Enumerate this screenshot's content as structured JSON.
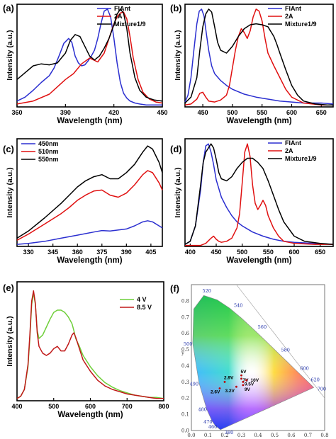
{
  "colors": {
    "blue": "#2b2fd0",
    "red": "#e01010",
    "black": "#000000",
    "green": "#6fcf3a",
    "darkred": "#c01818"
  },
  "chart_data": [
    {
      "panel": "(a)",
      "type": "line",
      "xlabel": "Wavelength (nm)",
      "ylabel": "Intensity (a.u.)",
      "xlim": [
        360,
        450
      ],
      "xticks": [
        360,
        390,
        420,
        450
      ],
      "xticklabels": [
        "360",
        "390",
        "420",
        "450"
      ],
      "ylim": [
        0,
        1.05
      ],
      "legend_position": "top-right",
      "series": [
        {
          "name": "FlAnt",
          "color": "blue",
          "x": [
            360,
            365,
            370,
            375,
            380,
            383,
            386,
            389,
            392,
            394,
            396,
            398,
            400,
            402,
            404,
            406,
            408,
            410,
            412,
            414,
            416,
            418,
            420,
            422,
            424,
            426,
            428,
            430,
            433,
            436,
            440,
            445,
            450
          ],
          "y": [
            0.06,
            0.1,
            0.17,
            0.25,
            0.32,
            0.4,
            0.52,
            0.65,
            0.7,
            0.66,
            0.52,
            0.45,
            0.42,
            0.43,
            0.47,
            0.52,
            0.58,
            0.7,
            0.85,
            0.98,
            1.0,
            0.92,
            0.7,
            0.45,
            0.25,
            0.14,
            0.09,
            0.06,
            0.04,
            0.03,
            0.02,
            0.02,
            0.02
          ]
        },
        {
          "name": "2A",
          "color": "red",
          "x": [
            360,
            370,
            380,
            390,
            395,
            400,
            405,
            410,
            414,
            418,
            420,
            422,
            424,
            426,
            428,
            430,
            432,
            435,
            438,
            442,
            446,
            450
          ],
          "y": [
            0.03,
            0.06,
            0.13,
            0.28,
            0.34,
            0.44,
            0.5,
            0.46,
            0.55,
            0.75,
            0.85,
            0.92,
            0.96,
            0.97,
            0.9,
            0.72,
            0.5,
            0.28,
            0.15,
            0.08,
            0.05,
            0.04
          ]
        },
        {
          "name": "Mixture1/9",
          "color": "black",
          "x": [
            360,
            365,
            370,
            375,
            380,
            385,
            390,
            393,
            396,
            399,
            402,
            405,
            408,
            411,
            414,
            417,
            420,
            422,
            424,
            426,
            428,
            430,
            433,
            436,
            440,
            445,
            450
          ],
          "y": [
            0.28,
            0.35,
            0.42,
            0.44,
            0.43,
            0.45,
            0.55,
            0.68,
            0.74,
            0.72,
            0.62,
            0.52,
            0.48,
            0.52,
            0.6,
            0.7,
            0.84,
            0.95,
            1.0,
            0.96,
            0.8,
            0.55,
            0.3,
            0.17,
            0.1,
            0.07,
            0.06
          ]
        }
      ]
    },
    {
      "panel": "(b)",
      "type": "line",
      "xlabel": "Wavelength (nm)",
      "ylabel": "Intensity (a.u.)",
      "xlim": [
        420,
        670
      ],
      "xticks": [
        450,
        500,
        550,
        600,
        650
      ],
      "xticklabels": [
        "450",
        "500",
        "550",
        "600",
        "650"
      ],
      "ylim": [
        0,
        1.05
      ],
      "legend_position": "top-right",
      "series": [
        {
          "name": "FlAnt",
          "color": "blue",
          "x": [
            420,
            425,
            430,
            435,
            440,
            444,
            448,
            452,
            456,
            460,
            465,
            470,
            480,
            490,
            500,
            520,
            540,
            560,
            580,
            600,
            620,
            650,
            670
          ],
          "y": [
            0.05,
            0.12,
            0.3,
            0.58,
            0.85,
            0.98,
            1.0,
            0.93,
            0.75,
            0.58,
            0.42,
            0.34,
            0.27,
            0.22,
            0.18,
            0.13,
            0.1,
            0.08,
            0.06,
            0.05,
            0.04,
            0.04,
            0.03
          ]
        },
        {
          "name": "2A",
          "color": "red",
          "x": [
            420,
            430,
            440,
            445,
            450,
            455,
            460,
            470,
            480,
            490,
            495,
            500,
            505,
            510,
            515,
            520,
            525,
            530,
            535,
            540,
            545,
            550,
            555,
            560,
            570,
            580,
            590,
            600,
            620,
            650,
            670
          ],
          "y": [
            0.02,
            0.03,
            0.08,
            0.14,
            0.15,
            0.1,
            0.06,
            0.05,
            0.07,
            0.12,
            0.22,
            0.4,
            0.58,
            0.72,
            0.8,
            0.76,
            0.7,
            0.78,
            0.92,
            1.0,
            0.98,
            0.88,
            0.7,
            0.55,
            0.42,
            0.3,
            0.18,
            0.1,
            0.04,
            0.02,
            0.02
          ]
        },
        {
          "name": "Mixture1/9",
          "color": "black",
          "x": [
            420,
            430,
            440,
            445,
            450,
            455,
            460,
            465,
            470,
            475,
            480,
            490,
            500,
            510,
            520,
            530,
            540,
            550,
            560,
            570,
            575,
            580,
            590,
            600,
            610,
            620,
            640,
            660,
            670
          ],
          "y": [
            0.04,
            0.1,
            0.3,
            0.58,
            0.82,
            0.95,
            1.0,
            0.97,
            0.82,
            0.66,
            0.58,
            0.55,
            0.62,
            0.72,
            0.8,
            0.84,
            0.85,
            0.84,
            0.82,
            0.72,
            0.64,
            0.55,
            0.38,
            0.22,
            0.12,
            0.06,
            0.03,
            0.02,
            0.02
          ]
        }
      ]
    },
    {
      "panel": "(c)",
      "type": "line",
      "xlabel": "Wavelength (nm)",
      "ylabel": "Intensity (a.u.)",
      "xlim": [
        323,
        412
      ],
      "xticks": [
        330,
        345,
        360,
        375,
        390,
        405
      ],
      "xticklabels": [
        "330",
        "345",
        "360",
        "375",
        "390",
        "405"
      ],
      "ylim": [
        0,
        1.05
      ],
      "legend_position": "top-left",
      "series": [
        {
          "name": "450nm",
          "color": "blue",
          "x": [
            323,
            330,
            340,
            350,
            360,
            370,
            375,
            380,
            390,
            395,
            400,
            403,
            406,
            410,
            412
          ],
          "y": [
            0.02,
            0.03,
            0.05,
            0.08,
            0.11,
            0.14,
            0.155,
            0.15,
            0.17,
            0.2,
            0.24,
            0.25,
            0.24,
            0.2,
            0.18
          ]
        },
        {
          "name": "510nm",
          "color": "red",
          "x": [
            323,
            330,
            340,
            350,
            355,
            360,
            365,
            370,
            375,
            380,
            385,
            390,
            395,
            400,
            403,
            406,
            410,
            412
          ],
          "y": [
            0.06,
            0.12,
            0.22,
            0.32,
            0.38,
            0.45,
            0.5,
            0.54,
            0.55,
            0.5,
            0.48,
            0.52,
            0.6,
            0.7,
            0.74,
            0.72,
            0.62,
            0.55
          ]
        },
        {
          "name": "550nm",
          "color": "black",
          "x": [
            323,
            330,
            340,
            350,
            355,
            360,
            365,
            370,
            375,
            380,
            385,
            390,
            395,
            400,
            403,
            406,
            410,
            412
          ],
          "y": [
            0.08,
            0.15,
            0.28,
            0.42,
            0.5,
            0.58,
            0.64,
            0.68,
            0.7,
            0.66,
            0.66,
            0.72,
            0.8,
            0.92,
            0.98,
            0.95,
            0.82,
            0.72
          ]
        }
      ]
    },
    {
      "panel": "(d)",
      "type": "line",
      "xlabel": "Wavelength (nm)",
      "ylabel": "Intensity (a.u.)",
      "xlim": [
        390,
        675
      ],
      "xticks": [
        400,
        450,
        500,
        550,
        600,
        650
      ],
      "xticklabels": [
        "400",
        "450",
        "500",
        "550",
        "600",
        "650"
      ],
      "ylim": [
        0,
        1.05
      ],
      "legend_position": "top-right",
      "series": [
        {
          "name": "FlAnt",
          "color": "blue",
          "x": [
            390,
            400,
            410,
            420,
            425,
            430,
            435,
            440,
            445,
            450,
            460,
            470,
            480,
            490,
            500,
            520,
            540,
            560,
            580,
            600,
            640,
            675
          ],
          "y": [
            0.02,
            0.05,
            0.2,
            0.55,
            0.82,
            0.98,
            1.0,
            0.92,
            0.8,
            0.65,
            0.48,
            0.38,
            0.3,
            0.24,
            0.2,
            0.14,
            0.1,
            0.07,
            0.05,
            0.04,
            0.03,
            0.02
          ]
        },
        {
          "name": "2A",
          "color": "red",
          "x": [
            390,
            420,
            430,
            440,
            445,
            450,
            455,
            460,
            470,
            480,
            490,
            495,
            500,
            505,
            510,
            515,
            520,
            525,
            530,
            535,
            540,
            545,
            550,
            560,
            570,
            580,
            600,
            640,
            675
          ],
          "y": [
            0.01,
            0.01,
            0.03,
            0.08,
            0.1,
            0.07,
            0.05,
            0.04,
            0.05,
            0.08,
            0.18,
            0.32,
            0.62,
            0.92,
            1.0,
            0.88,
            0.6,
            0.42,
            0.36,
            0.4,
            0.45,
            0.4,
            0.3,
            0.18,
            0.1,
            0.05,
            0.03,
            0.02,
            0.02
          ]
        },
        {
          "name": "Mixture1/9",
          "color": "black",
          "x": [
            390,
            400,
            410,
            420,
            425,
            430,
            435,
            440,
            445,
            450,
            455,
            460,
            470,
            480,
            490,
            500,
            510,
            520,
            530,
            540,
            550,
            560,
            570,
            580,
            600,
            620,
            650,
            675
          ],
          "y": [
            0.02,
            0.05,
            0.2,
            0.6,
            0.82,
            0.92,
            0.96,
            1.0,
            0.96,
            0.85,
            0.72,
            0.66,
            0.64,
            0.68,
            0.76,
            0.82,
            0.86,
            0.86,
            0.82,
            0.76,
            0.64,
            0.5,
            0.36,
            0.24,
            0.1,
            0.05,
            0.03,
            0.02
          ]
        }
      ]
    },
    {
      "panel": "(e)",
      "type": "line",
      "xlabel": "Wavelength (nm)",
      "ylabel": "Intensity (a.u.)",
      "xlim": [
        400,
        800
      ],
      "xticks": [
        400,
        500,
        600,
        700,
        800
      ],
      "xticklabels": [
        "400",
        "500",
        "600",
        "700",
        "800"
      ],
      "ylim": [
        0,
        1.05
      ],
      "legend_position": "top-right",
      "series": [
        {
          "name": "4 V",
          "color": "green",
          "x": [
            400,
            410,
            420,
            430,
            435,
            440,
            445,
            450,
            455,
            460,
            470,
            480,
            490,
            500,
            510,
            520,
            530,
            540,
            550,
            555,
            560,
            570,
            580,
            600,
            620,
            640,
            660,
            680,
            700,
            720,
            740,
            760,
            780,
            800
          ],
          "y": [
            0.02,
            0.04,
            0.1,
            0.3,
            0.55,
            0.85,
            0.95,
            0.85,
            0.62,
            0.55,
            0.58,
            0.65,
            0.72,
            0.78,
            0.8,
            0.8,
            0.78,
            0.74,
            0.68,
            0.62,
            0.55,
            0.48,
            0.4,
            0.3,
            0.22,
            0.16,
            0.12,
            0.09,
            0.07,
            0.05,
            0.04,
            0.03,
            0.03,
            0.02
          ]
        },
        {
          "name": "8.5 V",
          "color": "darkred",
          "x": [
            400,
            410,
            420,
            430,
            435,
            440,
            445,
            450,
            455,
            460,
            470,
            480,
            490,
            500,
            510,
            520,
            530,
            540,
            550,
            555,
            560,
            570,
            580,
            600,
            620,
            640,
            660,
            680,
            700,
            720,
            740,
            760,
            780,
            800
          ],
          "y": [
            0.02,
            0.04,
            0.1,
            0.32,
            0.58,
            0.88,
            0.97,
            0.86,
            0.6,
            0.48,
            0.42,
            0.4,
            0.42,
            0.46,
            0.48,
            0.44,
            0.44,
            0.5,
            0.58,
            0.6,
            0.56,
            0.46,
            0.36,
            0.26,
            0.18,
            0.13,
            0.1,
            0.08,
            0.06,
            0.05,
            0.04,
            0.03,
            0.02,
            0.02
          ]
        }
      ]
    },
    {
      "panel": "(f)",
      "type": "scatter",
      "xlabel": "x",
      "ylabel": "y",
      "xlim": [
        0,
        0.8
      ],
      "ylim": [
        0,
        0.9
      ],
      "xticklabels": [
        "0.0",
        "0.1",
        "0.2",
        "0.3",
        "0.4",
        "0.5",
        "0.6",
        "0.7",
        "0.8"
      ],
      "yticklabels": [
        "0.0",
        "0.1",
        "0.2",
        "0.3",
        "0.4",
        "0.5",
        "0.6",
        "0.7",
        "0.8"
      ],
      "wavelength_labels": [
        {
          "label": "380",
          "x": 0.1741,
          "y": 0.005
        },
        {
          "label": "460",
          "x": 0.144,
          "y": 0.0297
        },
        {
          "label": "470",
          "x": 0.1241,
          "y": 0.0578
        },
        {
          "label": "480",
          "x": 0.0913,
          "y": 0.1327
        },
        {
          "label": "490",
          "x": 0.0454,
          "y": 0.295
        },
        {
          "label": "500",
          "x": 0.0082,
          "y": 0.5384
        },
        {
          "label": "520",
          "x": 0.0743,
          "y": 0.8338
        },
        {
          "label": "540",
          "x": 0.2296,
          "y": 0.7543
        },
        {
          "label": "560",
          "x": 0.3731,
          "y": 0.6245
        },
        {
          "label": "580",
          "x": 0.5125,
          "y": 0.4866
        },
        {
          "label": "600",
          "x": 0.627,
          "y": 0.3725
        },
        {
          "label": "620",
          "x": 0.6915,
          "y": 0.3083
        },
        {
          "label": "700",
          "x": 0.7347,
          "y": 0.2653
        }
      ],
      "points": [
        {
          "label": "2.6V",
          "x": 0.17,
          "y": 0.26
        },
        {
          "label": "2.9V",
          "x": 0.2,
          "y": 0.3
        },
        {
          "label": "3.2V",
          "x": 0.27,
          "y": 0.27
        },
        {
          "label": "5V",
          "x": 0.3,
          "y": 0.34
        },
        {
          "label": "7V",
          "x": 0.3,
          "y": 0.32
        },
        {
          "label": "9V",
          "x": 0.31,
          "y": 0.28
        },
        {
          "label": "9.5V",
          "x": 0.31,
          "y": 0.3
        },
        {
          "label": "10V",
          "x": 0.33,
          "y": 0.31
        }
      ]
    }
  ]
}
